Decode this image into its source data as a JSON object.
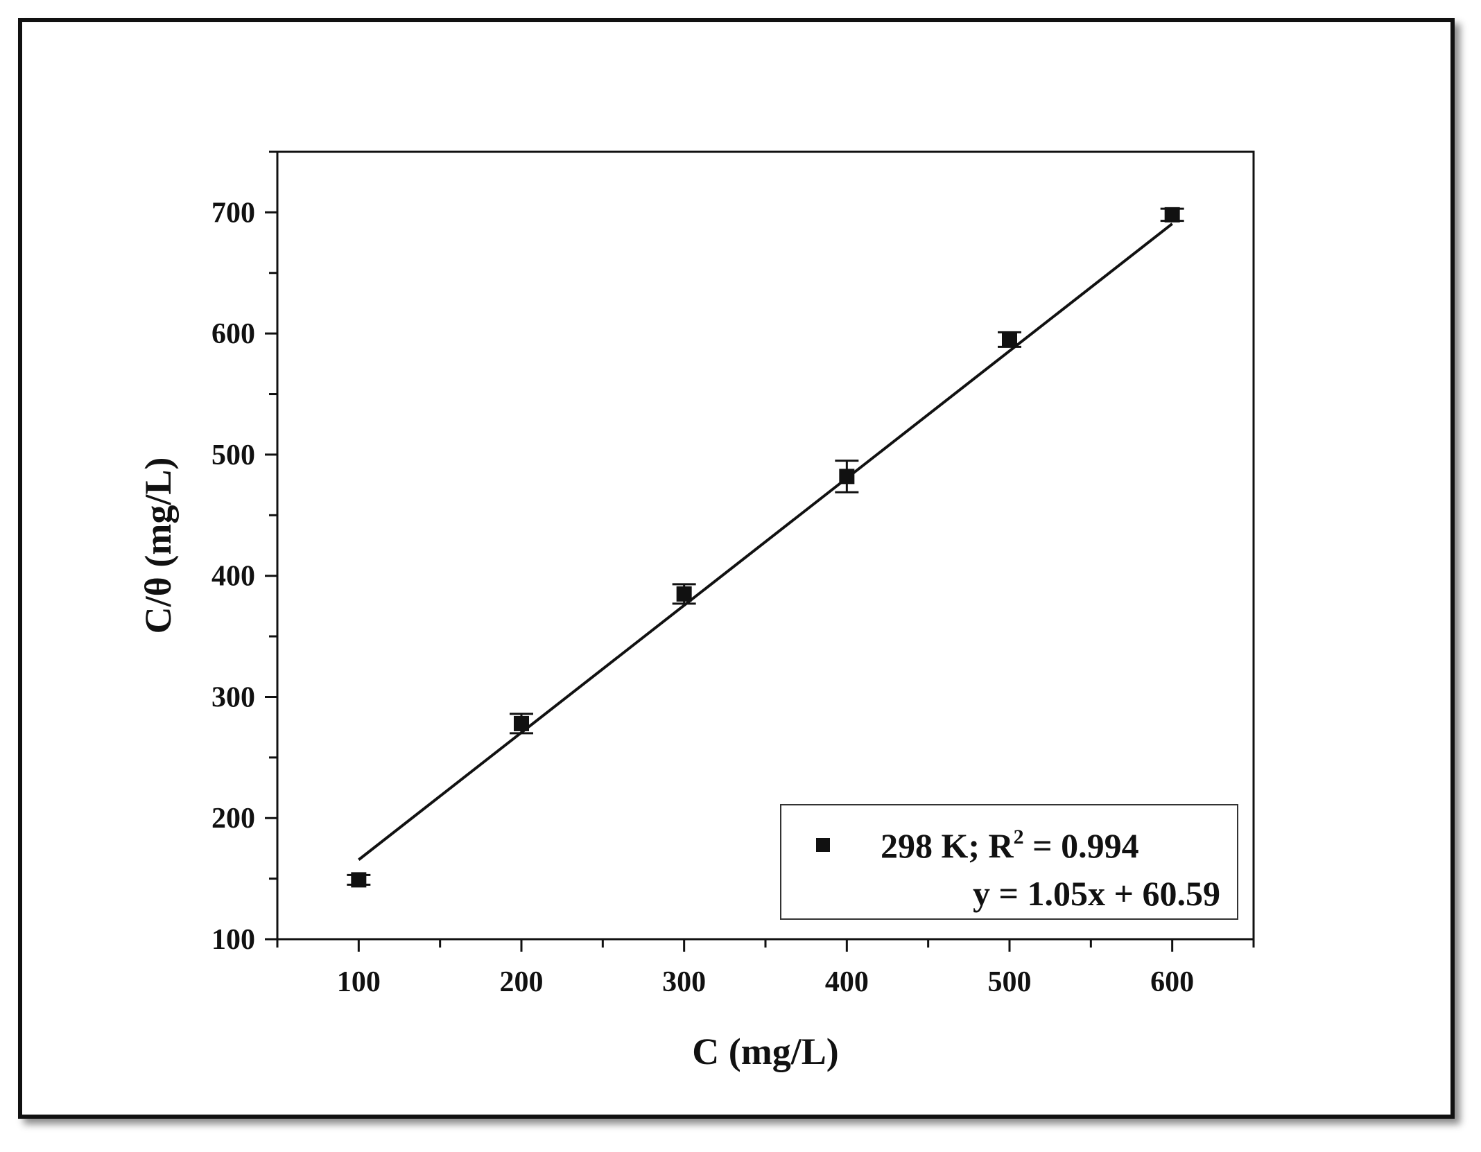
{
  "chart_data": {
    "type": "scatter",
    "xlabel": "C (mg/L)",
    "ylabel": "C/θ (mg/L)",
    "xlim": [
      50,
      650
    ],
    "ylim": [
      100,
      750
    ],
    "x_ticks": [
      100,
      200,
      300,
      400,
      500,
      600
    ],
    "y_ticks": [
      100,
      200,
      300,
      400,
      500,
      600,
      700
    ],
    "grid": false,
    "legend_position": "bottom-right",
    "series": [
      {
        "name": "298 K; R",
        "name_superscript": "2",
        "name_suffix": " = 0.994",
        "marker": "square",
        "color": "#111111",
        "x": [
          100,
          200,
          300,
          400,
          500,
          600
        ],
        "y": [
          149,
          278,
          385,
          482,
          595,
          698
        ],
        "yerr": [
          4,
          8,
          8,
          13,
          6,
          5
        ]
      }
    ],
    "fit": {
      "slope": 1.05,
      "intercept": 60.59,
      "x_range": [
        100,
        600
      ],
      "label": "y = 1.05x + 60.59",
      "color": "#111111"
    }
  }
}
